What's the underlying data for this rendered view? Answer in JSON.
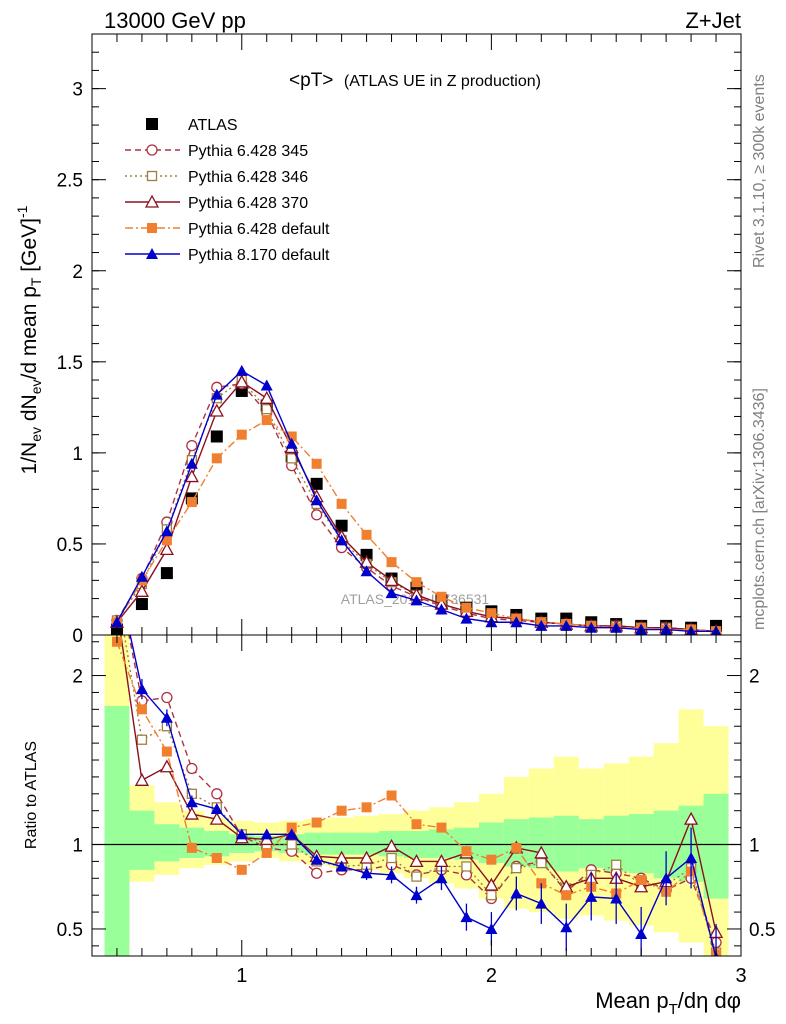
{
  "header": {
    "left": "13000 GeV pp",
    "right": "Z+Jet"
  },
  "side_labels": {
    "rivet": "Rivet 3.1.10, ≥ 300k events",
    "mcplots": "mcplots.cern.ch [arXiv:1306.3436]"
  },
  "watermark": "ATLAS_2019_I1736531",
  "chart_data": [
    {
      "type": "line",
      "title_main": "<pT>",
      "title_sub": "(ATLAS UE in Z production)",
      "xlim": [
        0.4,
        3.0
      ],
      "ylim": [
        0,
        3.3
      ],
      "yticks": [
        0,
        0.5,
        1,
        1.5,
        2,
        2.5,
        3
      ],
      "ytick_labels": [
        "0",
        "0.5",
        "1",
        "1.5",
        "2",
        "2.5",
        "3"
      ],
      "ylabel": "1/N_ev dN_ev/d mean p_T [GeV]^-1",
      "x": [
        0.5,
        0.6,
        0.7,
        0.8,
        0.9,
        1.0,
        1.1,
        1.2,
        1.3,
        1.4,
        1.5,
        1.6,
        1.7,
        1.8,
        1.9,
        2.0,
        2.1,
        2.2,
        2.3,
        2.4,
        2.5,
        2.6,
        2.7,
        2.8,
        2.9
      ],
      "series": [
        {
          "name": "ATLAS",
          "style": "data",
          "color": "#000000",
          "marker": "square",
          "values": [
            0.03,
            0.17,
            0.34,
            0.75,
            1.09,
            1.34,
            1.26,
            0.98,
            0.83,
            0.6,
            0.44,
            0.31,
            0.26,
            0.19,
            0.15,
            0.13,
            0.11,
            0.09,
            0.09,
            0.07,
            0.06,
            0.05,
            0.05,
            0.04,
            0.05
          ]
        },
        {
          "name": "Pythia 6.428 345",
          "style": "dashed",
          "color": "#b03040",
          "marker": "circle-open",
          "values": [
            0.08,
            0.31,
            0.62,
            1.04,
            1.36,
            1.38,
            1.22,
            0.93,
            0.66,
            0.48,
            0.37,
            0.27,
            0.21,
            0.16,
            0.12,
            0.09,
            0.08,
            0.07,
            0.06,
            0.05,
            0.05,
            0.04,
            0.04,
            0.03,
            0.02
          ]
        },
        {
          "name": "Pythia 6.428 346",
          "style": "dotted",
          "color": "#a08040",
          "marker": "square-open",
          "values": [
            0.08,
            0.28,
            0.58,
            0.96,
            1.3,
            1.4,
            1.24,
            0.97,
            0.72,
            0.52,
            0.39,
            0.29,
            0.22,
            0.17,
            0.13,
            0.1,
            0.09,
            0.07,
            0.06,
            0.05,
            0.05,
            0.04,
            0.04,
            0.03,
            0.02
          ]
        },
        {
          "name": "Pythia 6.428 370",
          "style": "solid",
          "color": "#8b1020",
          "marker": "triangle-open",
          "values": [
            0.07,
            0.24,
            0.47,
            0.87,
            1.23,
            1.39,
            1.3,
            1.03,
            0.76,
            0.54,
            0.4,
            0.3,
            0.22,
            0.17,
            0.13,
            0.1,
            0.09,
            0.07,
            0.06,
            0.05,
            0.05,
            0.04,
            0.04,
            0.03,
            0.02
          ]
        },
        {
          "name": "Pythia 6.428 default",
          "style": "dashdot",
          "color": "#f07f30",
          "marker": "square",
          "values": [
            0.07,
            0.3,
            0.52,
            0.73,
            0.97,
            1.1,
            1.18,
            1.09,
            0.94,
            0.72,
            0.55,
            0.4,
            0.29,
            0.21,
            0.15,
            0.12,
            0.09,
            0.07,
            0.06,
            0.05,
            0.04,
            0.04,
            0.03,
            0.03,
            0.02
          ]
        },
        {
          "name": "Pythia 8.170 default",
          "style": "solid",
          "color": "#0000cc",
          "marker": "triangle",
          "values": [
            0.07,
            0.32,
            0.57,
            0.94,
            1.32,
            1.45,
            1.37,
            1.05,
            0.74,
            0.52,
            0.35,
            0.23,
            0.19,
            0.14,
            0.09,
            0.07,
            0.07,
            0.05,
            0.05,
            0.04,
            0.04,
            0.03,
            0.03,
            0.02,
            0.02
          ]
        }
      ]
    },
    {
      "type": "line",
      "ylabel": "Ratio to ATLAS",
      "xlabel": "Mean p_T/dη dφ",
      "xlim": [
        0.4,
        3.0
      ],
      "ylim": [
        0.34,
        2.24
      ],
      "yticks": [
        0.5,
        1,
        2
      ],
      "ytick_labels": [
        "0.5",
        "1",
        "2"
      ],
      "xticks": [
        1,
        2,
        3
      ],
      "xtick_labels": [
        "1",
        "2",
        "3"
      ],
      "x": [
        0.5,
        0.6,
        0.7,
        0.8,
        0.9,
        1.0,
        1.1,
        1.2,
        1.3,
        1.4,
        1.5,
        1.6,
        1.7,
        1.8,
        1.9,
        2.0,
        2.1,
        2.2,
        2.3,
        2.4,
        2.5,
        2.6,
        2.7,
        2.8,
        2.9
      ],
      "bands": {
        "edges": [
          0.45,
          0.55,
          0.65,
          0.75,
          0.85,
          0.95,
          1.05,
          1.15,
          1.25,
          1.35,
          1.45,
          1.55,
          1.65,
          1.75,
          1.85,
          1.95,
          2.05,
          2.15,
          2.25,
          2.35,
          2.45,
          2.55,
          2.65,
          2.75,
          2.85,
          2.95
        ],
        "green_upper": [
          1.82,
          1.2,
          1.12,
          1.1,
          1.08,
          1.06,
          1.05,
          1.06,
          1.07,
          1.07,
          1.07,
          1.08,
          1.08,
          1.09,
          1.1,
          1.13,
          1.15,
          1.16,
          1.17,
          1.15,
          1.17,
          1.18,
          1.2,
          1.23,
          1.3
        ],
        "green_lower": [
          0.34,
          0.85,
          0.9,
          0.92,
          0.93,
          0.95,
          0.96,
          0.95,
          0.94,
          0.94,
          0.94,
          0.93,
          0.92,
          0.92,
          0.91,
          0.89,
          0.87,
          0.86,
          0.84,
          0.86,
          0.84,
          0.83,
          0.8,
          0.78,
          0.68
        ],
        "yellow_upper": [
          2.24,
          1.35,
          1.25,
          1.2,
          1.16,
          1.14,
          1.13,
          1.14,
          1.15,
          1.16,
          1.17,
          1.18,
          1.2,
          1.22,
          1.25,
          1.3,
          1.4,
          1.45,
          1.52,
          1.45,
          1.48,
          1.52,
          1.6,
          1.8,
          1.7
        ],
        "yellow_lower": [
          0.34,
          0.78,
          0.82,
          0.86,
          0.88,
          0.9,
          0.92,
          0.9,
          0.88,
          0.86,
          0.85,
          0.83,
          0.8,
          0.77,
          0.74,
          0.68,
          0.62,
          0.6,
          0.56,
          0.58,
          0.55,
          0.52,
          0.48,
          0.42,
          0.34
        ]
      },
      "series": [
        {
          "name": "Pythia 6.428 345",
          "style": "dashed",
          "color": "#b03040",
          "marker": "circle-open",
          "values": [
            2.6,
            1.85,
            1.87,
            1.45,
            1.3,
            1.05,
            0.98,
            0.96,
            0.83,
            0.85,
            0.85,
            0.88,
            0.82,
            0.85,
            0.82,
            0.68,
            0.87,
            0.9,
            0.72,
            0.85,
            0.83,
            0.8,
            0.73,
            0.8,
            0.42
          ]
        },
        {
          "name": "Pythia 6.428 346",
          "style": "dotted",
          "color": "#a08040",
          "marker": "square-open",
          "values": [
            2.5,
            1.62,
            1.7,
            1.3,
            1.22,
            1.06,
            1.0,
            1.0,
            0.9,
            0.87,
            0.88,
            0.92,
            0.81,
            0.87,
            0.87,
            0.7,
            0.86,
            0.89,
            0.74,
            0.82,
            0.88,
            0.76,
            0.76,
            0.86,
            0.36
          ]
        },
        {
          "name": "Pythia 6.428 370",
          "style": "solid",
          "color": "#8b1020",
          "marker": "triangle-open",
          "values": [
            2.4,
            1.38,
            1.46,
            1.18,
            1.15,
            1.04,
            1.03,
            1.06,
            0.93,
            0.92,
            0.92,
            0.99,
            0.9,
            0.9,
            0.95,
            0.76,
            0.98,
            0.95,
            0.75,
            0.8,
            0.8,
            0.75,
            0.78,
            1.15,
            0.48
          ]
        },
        {
          "name": "Pythia 6.428 default",
          "style": "dashdot",
          "color": "#f07f30",
          "marker": "square",
          "values": [
            2.2,
            1.8,
            1.55,
            0.98,
            0.92,
            0.85,
            0.95,
            1.1,
            1.13,
            1.2,
            1.22,
            1.29,
            1.12,
            1.1,
            0.96,
            0.91,
            0.98,
            0.77,
            0.7,
            0.75,
            0.71,
            0.79,
            0.72,
            0.84,
            0.35
          ]
        },
        {
          "name": "Pythia 8.170 default",
          "style": "solid",
          "color": "#0000cc",
          "marker": "triangle",
          "values": [
            2.6,
            1.92,
            1.75,
            1.25,
            1.21,
            1.06,
            1.06,
            1.06,
            0.91,
            0.87,
            0.83,
            0.82,
            0.7,
            0.8,
            0.57,
            0.5,
            0.71,
            0.65,
            0.51,
            0.69,
            0.68,
            0.47,
            0.8,
            0.92,
            0.33
          ],
          "errors": [
            0.1,
            0.06,
            0.05,
            0.04,
            0.03,
            0.02,
            0.02,
            0.02,
            0.03,
            0.03,
            0.04,
            0.05,
            0.05,
            0.07,
            0.08,
            0.1,
            0.1,
            0.12,
            0.14,
            0.14,
            0.15,
            0.16,
            0.16,
            0.18,
            0.2
          ]
        }
      ]
    }
  ]
}
